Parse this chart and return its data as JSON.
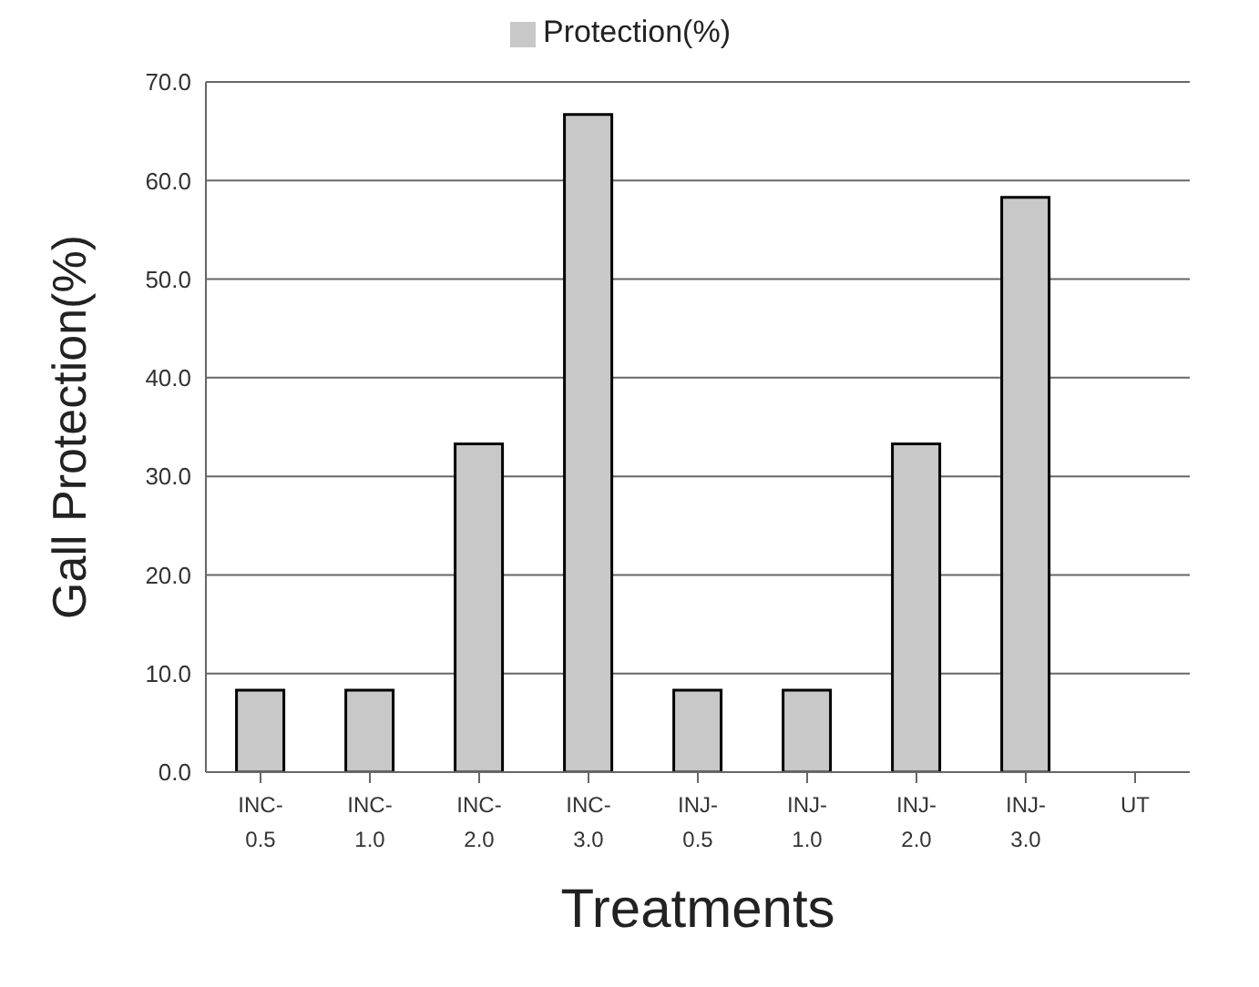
{
  "chart_data": {
    "type": "bar",
    "xlabel": "Treatments",
    "ylabel": "Gall Protection(%)",
    "categories": [
      "INC-\n0.5",
      "INC-\n1.0",
      "INC-\n2.0",
      "INC-\n3.0",
      "INJ-\n0.5",
      "INJ-\n1.0",
      "INJ-\n2.0",
      "INJ-\n3.0",
      "UT"
    ],
    "series": [
      {
        "name": "Protection(%)",
        "color": "#c8c8c8",
        "values": [
          8.3,
          8.3,
          33.3,
          66.7,
          8.3,
          8.3,
          33.3,
          58.3,
          0
        ]
      }
    ],
    "ylim": [
      0,
      70
    ],
    "yticks": [
      {
        "value": 0,
        "label": "0.0"
      },
      {
        "value": 10,
        "label": "10.0"
      },
      {
        "value": 20,
        "label": "20.0"
      },
      {
        "value": 30,
        "label": "30.0"
      },
      {
        "value": 40,
        "label": "40.0"
      },
      {
        "value": 50,
        "label": "50.0"
      },
      {
        "value": 60,
        "label": "60.0"
      },
      {
        "value": 70,
        "label": "70.0"
      }
    ],
    "grid": "y",
    "legend": "top"
  }
}
